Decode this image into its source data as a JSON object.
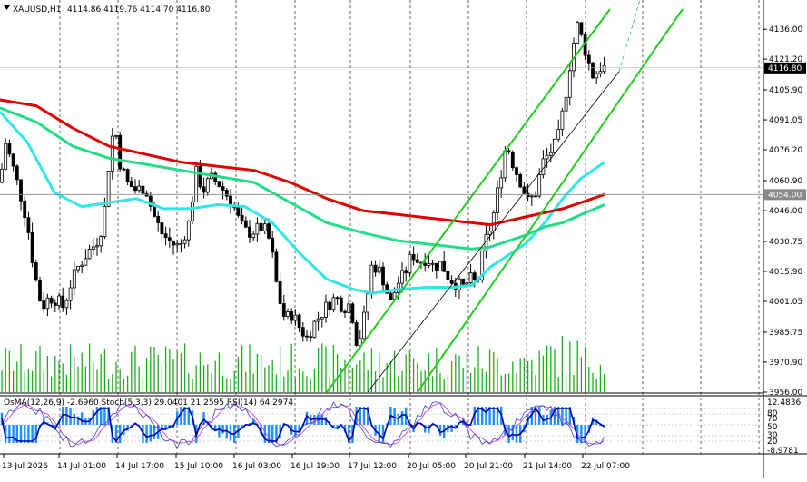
{
  "header": {
    "symbol_tf": "XAUUSD,H1",
    "ohlc": "4114.86 4119.76 4114.70 4116.80"
  },
  "price_axis": {
    "ticks": [
      "4136.00",
      "4121.20",
      "4105.90",
      "4091.05",
      "4076.20",
      "4060.90",
      "4046.00",
      "4030.75",
      "4015.90",
      "4001.05",
      "3985.75",
      "3970.90",
      "3956.00"
    ],
    "current_price": "4116.80",
    "marked_level": "4054.00"
  },
  "time_axis": {
    "labels": [
      "13 Jul 2026",
      "14 Jul 01:00",
      "14 Jul 17:00",
      "15 Jul 10:00",
      "16 Jul 03:00",
      "16 Jul 19:00",
      "17 Jul 12:00",
      "20 Jul 05:00",
      "20 Jul 21:00",
      "21 Jul 14:00",
      "22 Jul 07:00"
    ]
  },
  "oscillator": {
    "header": "OsMA(12,26,9) -2.6960 Stoch(5,3,3) 29.0401 21.2595 RSI(14) 64.2974",
    "axis_ticks": [
      "12.4836",
      "80",
      "70",
      "50",
      "30",
      "20",
      "-8.9781"
    ]
  },
  "colors": {
    "bull_candle": "#000000",
    "ema_red": "#e00000",
    "ema_green": "#22dd88",
    "ema_cyan": "#33e6e6",
    "channel": "#22cc22",
    "volume": "#22aa22",
    "osma": "#1e90ff",
    "stoch_main": "#0000aa",
    "stoch_signal": "#cc44cc"
  },
  "chart_data": {
    "type": "candlestick",
    "symbol": "XAUUSD",
    "timeframe": "H1",
    "ylim": [
      3956,
      4146
    ],
    "price_path": [
      [
        0,
        4060
      ],
      [
        6,
        4080
      ],
      [
        14,
        4068
      ],
      [
        22,
        4055
      ],
      [
        30,
        4040
      ],
      [
        38,
        4015
      ],
      [
        46,
        3998
      ],
      [
        54,
        4003
      ],
      [
        62,
        4002
      ],
      [
        70,
        3998
      ],
      [
        78,
        4010
      ],
      [
        86,
        4018
      ],
      [
        96,
        4025
      ],
      [
        106,
        4030
      ],
      [
        114,
        4040
      ],
      [
        120,
        4070
      ],
      [
        126,
        4090
      ],
      [
        132,
        4070
      ],
      [
        140,
        4060
      ],
      [
        150,
        4056
      ],
      [
        160,
        4058
      ],
      [
        168,
        4045
      ],
      [
        178,
        4035
      ],
      [
        188,
        4030
      ],
      [
        198,
        4028
      ],
      [
        208,
        4040
      ],
      [
        216,
        4065
      ],
      [
        224,
        4056
      ],
      [
        232,
        4062
      ],
      [
        240,
        4060
      ],
      [
        248,
        4055
      ],
      [
        256,
        4050
      ],
      [
        264,
        4040
      ],
      [
        272,
        4035
      ],
      [
        280,
        4036
      ],
      [
        290,
        4038
      ],
      [
        298,
        4030
      ],
      [
        306,
        4005
      ],
      [
        314,
        3992
      ],
      [
        322,
        3995
      ],
      [
        330,
        3988
      ],
      [
        338,
        3983
      ],
      [
        346,
        3990
      ],
      [
        354,
        3995
      ],
      [
        362,
        4000
      ],
      [
        370,
        4003
      ],
      [
        378,
        3998
      ],
      [
        386,
        4000
      ],
      [
        394,
        3978
      ],
      [
        402,
        3995
      ],
      [
        410,
        4020
      ],
      [
        420,
        4015
      ],
      [
        430,
        4000
      ],
      [
        438,
        4010
      ],
      [
        446,
        4015
      ],
      [
        454,
        4025
      ],
      [
        462,
        4020
      ],
      [
        470,
        4023
      ],
      [
        478,
        4018
      ],
      [
        486,
        4020
      ],
      [
        494,
        4013
      ],
      [
        502,
        4010
      ],
      [
        510,
        4008
      ],
      [
        518,
        4012
      ],
      [
        526,
        4010
      ],
      [
        534,
        4030
      ],
      [
        542,
        4040
      ],
      [
        550,
        4060
      ],
      [
        558,
        4080
      ],
      [
        566,
        4068
      ],
      [
        574,
        4060
      ],
      [
        582,
        4050
      ],
      [
        590,
        4055
      ],
      [
        598,
        4070
      ],
      [
        606,
        4075
      ],
      [
        614,
        4080
      ],
      [
        622,
        4100
      ],
      [
        630,
        4125
      ],
      [
        636,
        4138
      ],
      [
        642,
        4130
      ],
      [
        648,
        4120
      ],
      [
        654,
        4112
      ],
      [
        660,
        4117
      ],
      [
        666,
        4116.8
      ]
    ],
    "ema_red": [
      [
        0,
        4101
      ],
      [
        40,
        4098
      ],
      [
        80,
        4087
      ],
      [
        120,
        4078
      ],
      [
        160,
        4074
      ],
      [
        200,
        4070
      ],
      [
        240,
        4068
      ],
      [
        280,
        4066
      ],
      [
        320,
        4060
      ],
      [
        360,
        4052
      ],
      [
        400,
        4046
      ],
      [
        440,
        4044
      ],
      [
        480,
        4042
      ],
      [
        520,
        4040
      ],
      [
        540,
        4039
      ],
      [
        560,
        4041
      ],
      [
        580,
        4043
      ],
      [
        600,
        4045
      ],
      [
        620,
        4047
      ],
      [
        640,
        4050
      ],
      [
        666,
        4054
      ]
    ],
    "ema_green": [
      [
        0,
        4097
      ],
      [
        40,
        4090
      ],
      [
        80,
        4078
      ],
      [
        120,
        4072
      ],
      [
        160,
        4069
      ],
      [
        200,
        4066
      ],
      [
        240,
        4063
      ],
      [
        280,
        4060
      ],
      [
        320,
        4050
      ],
      [
        360,
        4040
      ],
      [
        400,
        4035
      ],
      [
        440,
        4031
      ],
      [
        480,
        4029
      ],
      [
        520,
        4027
      ],
      [
        540,
        4028
      ],
      [
        560,
        4031
      ],
      [
        580,
        4034
      ],
      [
        600,
        4038
      ],
      [
        620,
        4040
      ],
      [
        640,
        4044
      ],
      [
        666,
        4049
      ]
    ],
    "ema_cyan": [
      [
        0,
        4095
      ],
      [
        30,
        4080
      ],
      [
        60,
        4055
      ],
      [
        90,
        4048
      ],
      [
        120,
        4050
      ],
      [
        150,
        4052
      ],
      [
        180,
        4047
      ],
      [
        210,
        4047
      ],
      [
        240,
        4049
      ],
      [
        270,
        4048
      ],
      [
        300,
        4040
      ],
      [
        330,
        4025
      ],
      [
        360,
        4012
      ],
      [
        390,
        4007
      ],
      [
        410,
        4005
      ],
      [
        440,
        4007
      ],
      [
        470,
        4008
      ],
      [
        500,
        4008
      ],
      [
        520,
        4009
      ],
      [
        540,
        4018
      ],
      [
        560,
        4024
      ],
      [
        580,
        4030
      ],
      [
        600,
        4040
      ],
      [
        620,
        4052
      ],
      [
        640,
        4062
      ],
      [
        666,
        4070
      ]
    ],
    "channel_lines": [
      {
        "from": [
          360,
          3956
        ],
        "to": [
          672,
          4146
        ]
      },
      {
        "from": [
          460,
          3956
        ],
        "to": [
          752,
          4146
        ]
      },
      {
        "from": [
          405,
          3956
        ],
        "to": [
          682,
          4115
        ],
        "mid": true
      }
    ]
  }
}
